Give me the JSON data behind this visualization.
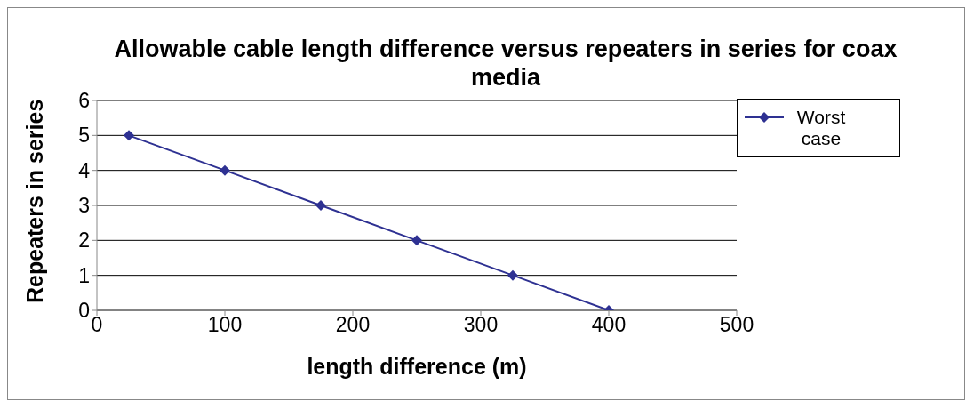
{
  "chart_data": {
    "type": "line",
    "title": "Allowable cable length difference versus repeaters in series for coax media",
    "xlabel": "length difference (m)",
    "ylabel": "Repeaters in series",
    "x": [
      25,
      100,
      175,
      250,
      325,
      400
    ],
    "series": [
      {
        "name": "Worst case",
        "color": "#2e3192",
        "values": [
          5,
          4,
          3,
          2,
          1,
          0
        ]
      }
    ],
    "xlim": [
      0,
      500
    ],
    "xticks": [
      0,
      100,
      200,
      300,
      400,
      500
    ],
    "ylim": [
      0,
      6
    ],
    "yticks": [
      0,
      1,
      2,
      3,
      4,
      5,
      6
    ],
    "grid": "y",
    "legend": "top right",
    "marker": "diamond",
    "line_style": "solid"
  }
}
